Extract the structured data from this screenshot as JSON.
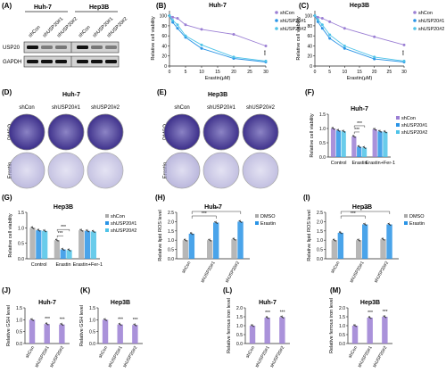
{
  "colors": {
    "purple": "#9b7fd4",
    "blue": "#2a94e6",
    "cyan": "#4fc3e8",
    "gray": "#aaaaaa",
    "dish": "#4a3d9a",
    "dishLight": "#b0aed8",
    "axis": "#222222"
  },
  "panels": {
    "A": {
      "letter": "(A)",
      "groups": [
        {
          "name": "Huh-7",
          "lanes": [
            "shCon",
            "shUSP20#1",
            "shUSP20#2"
          ]
        },
        {
          "name": "Hep3B",
          "lanes": [
            "shCon",
            "shUSP20#1",
            "shUSP20#2"
          ]
        }
      ],
      "bands": [
        "USP20",
        "GAPDH"
      ],
      "usp20_levels": [
        1.0,
        0.25,
        0.3,
        1.0,
        0.3,
        0.25
      ]
    },
    "D": {
      "letter": "(D)",
      "title": "Huh-7",
      "cols": [
        "shCon",
        "shUSP20#1",
        "shUSP20#2"
      ],
      "rows": [
        "DMSO",
        "Erastin"
      ],
      "density": [
        [
          1.0,
          0.95,
          0.95
        ],
        [
          0.45,
          0.25,
          0.25
        ]
      ]
    },
    "E": {
      "letter": "(E)",
      "title": "Hep3B",
      "cols": [
        "shCon",
        "shUSP20#1",
        "shUSP20#2"
      ],
      "rows": [
        "DMSO",
        "Erastin"
      ],
      "density": [
        [
          1.0,
          0.95,
          0.95
        ],
        [
          0.5,
          0.3,
          0.3
        ]
      ]
    },
    "F_title": "Huh-7"
  },
  "chart_data": [
    {
      "id": "B",
      "letter": "(B)",
      "type": "line",
      "title": "Huh-7",
      "xlabel": "Erastin(μM)",
      "ylabel": "Relative cell viability",
      "xlim": [
        0,
        30
      ],
      "ylim": [
        0,
        110
      ],
      "xticks": [
        "0",
        "5",
        "10",
        "15",
        "20",
        "25",
        "30"
      ],
      "yticks": [
        "0",
        "20",
        "40",
        "60",
        "80",
        "100"
      ],
      "x": [
        0,
        1,
        2.5,
        5,
        10,
        20,
        30
      ],
      "series": [
        {
          "name": "shCon",
          "color": "purple",
          "values": [
            100,
            97,
            95,
            82,
            73,
            63,
            40
          ]
        },
        {
          "name": "shUSP20#1",
          "color": "blue",
          "values": [
            100,
            87,
            75,
            57,
            35,
            15,
            8
          ]
        },
        {
          "name": "shUSP20#2",
          "color": "cyan",
          "values": [
            100,
            91,
            82,
            60,
            42,
            18,
            10
          ]
        }
      ],
      "annotation": "***",
      "legend": "right"
    },
    {
      "id": "C",
      "letter": "(C)",
      "type": "line",
      "title": "Hep3B",
      "xlabel": "Erastin(μM)",
      "ylabel": "Relative cell viability",
      "xlim": [
        0,
        30
      ],
      "ylim": [
        0,
        110
      ],
      "xticks": [
        "0",
        "5",
        "10",
        "15",
        "20",
        "25",
        "30"
      ],
      "yticks": [
        "0",
        "20",
        "40",
        "60",
        "80",
        "100"
      ],
      "x": [
        0,
        1,
        2.5,
        5,
        10,
        20,
        30
      ],
      "series": [
        {
          "name": "shCon",
          "color": "purple",
          "values": [
            100,
            97,
            95,
            88,
            75,
            58,
            42
          ]
        },
        {
          "name": "shUSP20#1",
          "color": "blue",
          "values": [
            100,
            88,
            75,
            55,
            35,
            14,
            8
          ]
        },
        {
          "name": "shUSP20#2",
          "color": "cyan",
          "values": [
            100,
            92,
            82,
            62,
            40,
            18,
            10
          ]
        }
      ],
      "annotation": "***",
      "legend": "right"
    },
    {
      "id": "F",
      "letter": "(F)",
      "type": "bar",
      "title": "Huh-7",
      "ylabel": "Relative cell viability",
      "ylim": [
        0,
        1.5
      ],
      "yticks": [
        "0.0",
        "0.5",
        "1.0",
        "1.5"
      ],
      "categories": [
        "Control",
        "Erastin",
        "Erastin+Fer-1"
      ],
      "series": [
        {
          "name": "shCon",
          "color": "purple",
          "values": [
            1.0,
            0.72,
            0.97
          ]
        },
        {
          "name": "shUSP20#1",
          "color": "blue",
          "values": [
            0.93,
            0.36,
            0.9
          ]
        },
        {
          "name": "shUSP20#2",
          "color": "cyan",
          "values": [
            0.9,
            0.33,
            0.88
          ]
        }
      ],
      "sig": [
        {
          "group": 1,
          "labels": [
            "***",
            "***"
          ]
        }
      ]
    },
    {
      "id": "G",
      "letter": "(G)",
      "type": "bar",
      "title": "Hep3B",
      "ylabel": "Relative cell viability",
      "ylim": [
        0,
        1.5
      ],
      "yticks": [
        "0.0",
        "0.5",
        "1.0",
        "1.5"
      ],
      "categories": [
        "Control",
        "Erastin",
        "Erastin+Fer-1"
      ],
      "series": [
        {
          "name": "shCon",
          "color": "gray",
          "values": [
            1.0,
            0.6,
            0.92
          ]
        },
        {
          "name": "shUSP20#1",
          "color": "blue",
          "values": [
            0.92,
            0.3,
            0.9
          ]
        },
        {
          "name": "shUSP20#2",
          "color": "cyan",
          "values": [
            0.9,
            0.28,
            0.88
          ]
        }
      ],
      "sig": [
        {
          "group": 1,
          "labels": [
            "***",
            "***"
          ]
        }
      ]
    },
    {
      "id": "H",
      "letter": "(H)",
      "type": "bar",
      "title": "Huh-7",
      "ylabel": "Relative lipid ROS level",
      "ylim": [
        0,
        2.5
      ],
      "yticks": [
        "0.0",
        "0.5",
        "1.0",
        "1.5",
        "2.0",
        "2.5"
      ],
      "categories": [
        "shCon",
        "shUSP20#1",
        "shUSP20#2"
      ],
      "series": [
        {
          "name": "DMSO",
          "color": "gray",
          "values": [
            1.0,
            1.0,
            1.05
          ]
        },
        {
          "name": "Erastin",
          "color": "blue",
          "values": [
            1.35,
            1.95,
            2.0
          ]
        }
      ],
      "brackets": [
        "***",
        "***"
      ],
      "rotate_categories": true
    },
    {
      "id": "I",
      "letter": "(I)",
      "type": "bar",
      "title": "Hep3B",
      "ylabel": "Relative lipid ROS level",
      "ylim": [
        0,
        2.5
      ],
      "yticks": [
        "0.0",
        "0.5",
        "1.0",
        "1.5",
        "2.0",
        "2.5"
      ],
      "categories": [
        "shCon",
        "shUSP20#1",
        "shUSP20#2"
      ],
      "series": [
        {
          "name": "DMSO",
          "color": "gray",
          "values": [
            1.0,
            1.0,
            1.05
          ]
        },
        {
          "name": "Erastin",
          "color": "blue",
          "values": [
            1.4,
            1.85,
            1.85
          ]
        }
      ],
      "brackets": [
        "***",
        "***"
      ],
      "rotate_categories": true
    },
    {
      "id": "J",
      "letter": "(J)",
      "type": "bar",
      "title": "Huh-7",
      "ylabel": "Relative GSH level",
      "ylim": [
        0,
        1.5
      ],
      "yticks": [
        "0.0",
        "0.5",
        "1.0",
        "1.5"
      ],
      "categories": [
        "shCon",
        "shUSP20#1",
        "shUSP20#2"
      ],
      "series": [
        {
          "name": "",
          "color": "purple",
          "values": [
            1.0,
            0.82,
            0.8
          ]
        }
      ],
      "labels": [
        "",
        "***",
        "***"
      ],
      "rotate_categories": true
    },
    {
      "id": "K",
      "letter": "(K)",
      "type": "bar",
      "title": "Hep3B",
      "ylabel": "Relative GSH level",
      "ylim": [
        0,
        1.5
      ],
      "yticks": [
        "0.0",
        "0.5",
        "1.0",
        "1.5"
      ],
      "categories": [
        "shCon",
        "shUSP20#1",
        "shUSP20#2"
      ],
      "series": [
        {
          "name": "",
          "color": "purple",
          "values": [
            1.0,
            0.8,
            0.78
          ]
        }
      ],
      "labels": [
        "",
        "***",
        "***"
      ],
      "rotate_categories": true
    },
    {
      "id": "L",
      "letter": "(L)",
      "type": "bar",
      "title": "Huh-7",
      "ylabel": "Relative ferrous iron level",
      "ylim": [
        0,
        2.0
      ],
      "yticks": [
        "0.0",
        "0.5",
        "1.0",
        "1.5",
        "2.0"
      ],
      "categories": [
        "shCon",
        "shUSP20#1",
        "shUSP20#2"
      ],
      "series": [
        {
          "name": "",
          "color": "purple",
          "values": [
            1.0,
            1.45,
            1.48
          ]
        }
      ],
      "labels": [
        "",
        "***",
        "***"
      ],
      "rotate_categories": true
    },
    {
      "id": "M",
      "letter": "(M)",
      "type": "bar",
      "title": "Hep3B",
      "ylabel": "Relative ferrous iron level",
      "ylim": [
        0,
        2.0
      ],
      "yticks": [
        "0.0",
        "0.5",
        "1.0",
        "1.5",
        "2.0"
      ],
      "categories": [
        "shCon",
        "shUSP20#1",
        "shUSP20#2"
      ],
      "series": [
        {
          "name": "",
          "color": "purple",
          "values": [
            1.0,
            1.45,
            1.5
          ]
        }
      ],
      "labels": [
        "",
        "***",
        "***"
      ],
      "rotate_categories": true
    }
  ]
}
